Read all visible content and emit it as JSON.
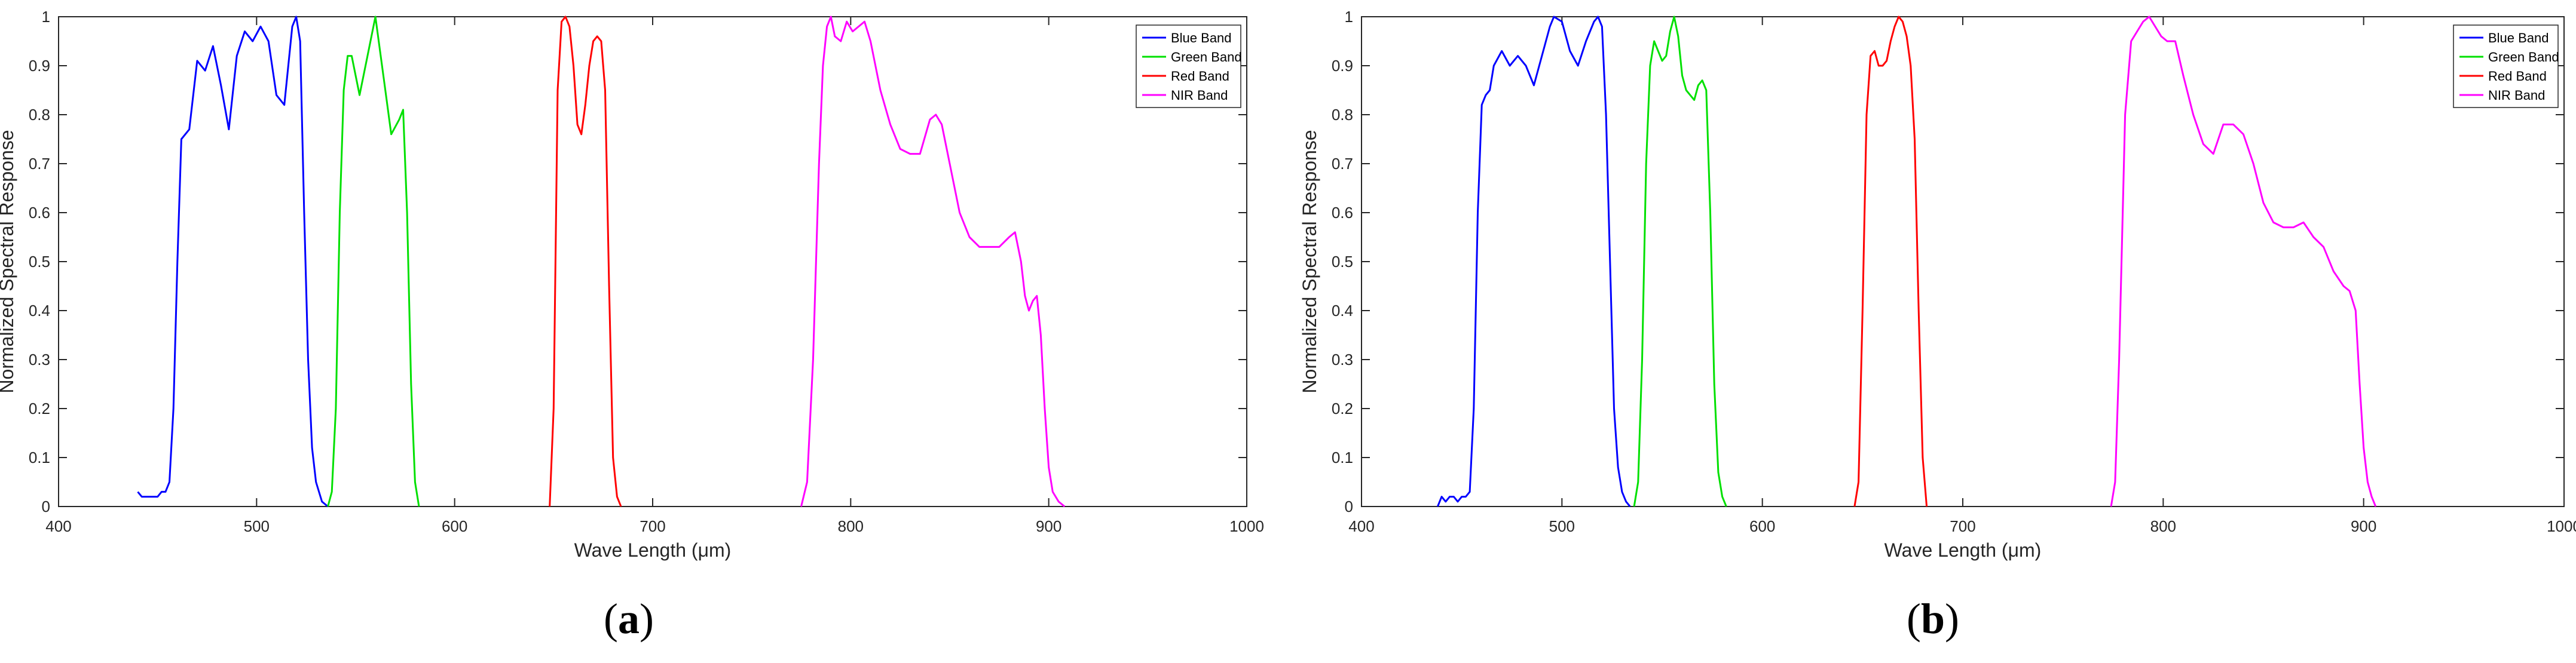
{
  "figure": {
    "panels": [
      {
        "caption_open": "(",
        "caption_letter": "a",
        "caption_close": ")",
        "chart_data": {
          "type": "line",
          "xlabel": "Wave Length (μm)",
          "ylabel": "Normalized Spectral Response",
          "xlim": [
            400,
            1000
          ],
          "ylim": [
            0,
            1
          ],
          "xticks": [
            400,
            500,
            600,
            700,
            800,
            900,
            1000
          ],
          "yticks": [
            0,
            0.1,
            0.2,
            0.3,
            0.4,
            0.5,
            0.6,
            0.7,
            0.8,
            0.9,
            1
          ],
          "ytick_labels": [
            "0",
            "0.1",
            "0.2",
            "0.3",
            "0.4",
            "0.5",
            "0.6",
            "0.7",
            "0.8",
            "0.9",
            "1"
          ],
          "grid": false,
          "legend_position": "top-right",
          "series": [
            {
              "name": "Blue Band",
              "color": "#0000ff",
              "x": [
                440,
                442,
                444,
                446,
                448,
                450,
                452,
                454,
                456,
                458,
                460,
                462,
                466,
                470,
                474,
                478,
                482,
                486,
                490,
                494,
                498,
                502,
                506,
                510,
                514,
                518,
                520,
                522,
                524,
                526,
                528,
                530,
                533,
                536
              ],
              "y": [
                0.03,
                0.02,
                0.02,
                0.02,
                0.02,
                0.02,
                0.03,
                0.03,
                0.05,
                0.2,
                0.5,
                0.75,
                0.77,
                0.91,
                0.89,
                0.94,
                0.86,
                0.77,
                0.92,
                0.97,
                0.95,
                0.98,
                0.95,
                0.84,
                0.82,
                0.98,
                1.0,
                0.95,
                0.6,
                0.3,
                0.12,
                0.05,
                0.01,
                0.0
              ]
            },
            {
              "name": "Green Band",
              "color": "#00e000",
              "x": [
                536,
                538,
                540,
                542,
                544,
                546,
                548,
                552,
                556,
                560,
                564,
                568,
                572,
                574,
                576,
                578,
                580,
                582
              ],
              "y": [
                0.0,
                0.03,
                0.2,
                0.6,
                0.85,
                0.92,
                0.92,
                0.84,
                0.92,
                1.0,
                0.88,
                0.76,
                0.79,
                0.81,
                0.6,
                0.25,
                0.05,
                0.0
              ]
            },
            {
              "name": "Red Band",
              "color": "#ff0000",
              "x": [
                648,
                650,
                652,
                654,
                656,
                658,
                660,
                662,
                664,
                666,
                668,
                670,
                672,
                674,
                676,
                678,
                680,
                682,
                684
              ],
              "y": [
                0.0,
                0.2,
                0.85,
                0.99,
                1.0,
                0.98,
                0.9,
                0.78,
                0.76,
                0.82,
                0.9,
                0.95,
                0.96,
                0.95,
                0.85,
                0.45,
                0.1,
                0.02,
                0.0
              ]
            },
            {
              "name": "NIR Band",
              "color": "#ff00ff",
              "x": [
                775,
                778,
                781,
                784,
                786,
                788,
                790,
                792,
                795,
                798,
                801,
                804,
                807,
                810,
                815,
                820,
                825,
                830,
                835,
                840,
                843,
                846,
                850,
                855,
                860,
                865,
                870,
                875,
                880,
                883,
                886,
                888,
                890,
                892,
                894,
                896,
                898,
                900,
                902,
                905,
                908
              ],
              "y": [
                0.0,
                0.05,
                0.3,
                0.7,
                0.9,
                0.98,
                1.0,
                0.96,
                0.95,
                0.99,
                0.97,
                0.98,
                0.99,
                0.95,
                0.85,
                0.78,
                0.73,
                0.72,
                0.72,
                0.79,
                0.8,
                0.78,
                0.7,
                0.6,
                0.55,
                0.53,
                0.53,
                0.53,
                0.55,
                0.56,
                0.5,
                0.43,
                0.4,
                0.42,
                0.43,
                0.35,
                0.2,
                0.08,
                0.03,
                0.01,
                0.0
              ]
            }
          ]
        }
      },
      {
        "caption_open": "(",
        "caption_letter": "b",
        "caption_close": ")",
        "chart_data": {
          "type": "line",
          "xlabel": "Wave Length (μm)",
          "ylabel": "Normalized Spectral Response",
          "xlim": [
            400,
            1000
          ],
          "ylim": [
            0,
            1
          ],
          "xticks": [
            400,
            500,
            600,
            700,
            800,
            900,
            1000
          ],
          "yticks": [
            0,
            0.1,
            0.2,
            0.3,
            0.4,
            0.5,
            0.6,
            0.7,
            0.8,
            0.9,
            1
          ],
          "ytick_labels": [
            "0",
            "0.1",
            "0.2",
            "0.3",
            "0.4",
            "0.5",
            "0.6",
            "0.7",
            "0.8",
            "0.9",
            "1"
          ],
          "grid": false,
          "legend_position": "top-right",
          "series": [
            {
              "name": "Blue Band",
              "color": "#0000ff",
              "x": [
                438,
                440,
                442,
                444,
                446,
                448,
                450,
                452,
                454,
                456,
                458,
                460,
                462,
                464,
                466,
                470,
                474,
                478,
                482,
                486,
                490,
                494,
                496,
                500,
                504,
                508,
                512,
                516,
                518,
                520,
                522,
                524,
                526,
                528,
                530,
                532,
                534
              ],
              "y": [
                0.0,
                0.02,
                0.01,
                0.02,
                0.02,
                0.01,
                0.02,
                0.02,
                0.03,
                0.2,
                0.6,
                0.82,
                0.84,
                0.85,
                0.9,
                0.93,
                0.9,
                0.92,
                0.9,
                0.86,
                0.92,
                0.98,
                1.0,
                0.99,
                0.93,
                0.9,
                0.95,
                0.99,
                1.0,
                0.98,
                0.8,
                0.5,
                0.2,
                0.08,
                0.03,
                0.01,
                0.0
              ]
            },
            {
              "name": "Green Band",
              "color": "#00e000",
              "x": [
                536,
                538,
                540,
                542,
                544,
                546,
                548,
                550,
                552,
                554,
                556,
                558,
                560,
                562,
                564,
                566,
                568,
                570,
                572,
                574,
                576,
                578,
                580,
                582
              ],
              "y": [
                0.0,
                0.05,
                0.3,
                0.7,
                0.9,
                0.95,
                0.93,
                0.91,
                0.92,
                0.97,
                1.0,
                0.96,
                0.88,
                0.85,
                0.84,
                0.83,
                0.86,
                0.87,
                0.85,
                0.6,
                0.25,
                0.07,
                0.02,
                0.0
              ]
            },
            {
              "name": "Red Band",
              "color": "#ff0000",
              "x": [
                646,
                648,
                650,
                652,
                654,
                656,
                658,
                660,
                662,
                664,
                666,
                668,
                670,
                672,
                674,
                676,
                678,
                680,
                682
              ],
              "y": [
                0.0,
                0.05,
                0.4,
                0.8,
                0.92,
                0.93,
                0.9,
                0.9,
                0.91,
                0.95,
                0.98,
                1.0,
                0.99,
                0.96,
                0.9,
                0.75,
                0.4,
                0.1,
                0.0
              ]
            },
            {
              "name": "NIR Band",
              "color": "#ff00ff",
              "x": [
                774,
                776,
                778,
                781,
                784,
                787,
                790,
                793,
                796,
                799,
                802,
                806,
                810,
                815,
                820,
                825,
                830,
                835,
                840,
                845,
                850,
                855,
                860,
                865,
                870,
                875,
                880,
                885,
                890,
                893,
                896,
                898,
                900,
                902,
                904,
                906
              ],
              "y": [
                0.0,
                0.05,
                0.3,
                0.8,
                0.95,
                0.97,
                0.99,
                1.0,
                0.98,
                0.96,
                0.95,
                0.95,
                0.88,
                0.8,
                0.74,
                0.72,
                0.78,
                0.78,
                0.76,
                0.7,
                0.62,
                0.58,
                0.57,
                0.57,
                0.58,
                0.55,
                0.53,
                0.48,
                0.45,
                0.44,
                0.4,
                0.25,
                0.12,
                0.05,
                0.02,
                0.0
              ]
            }
          ]
        }
      }
    ]
  }
}
